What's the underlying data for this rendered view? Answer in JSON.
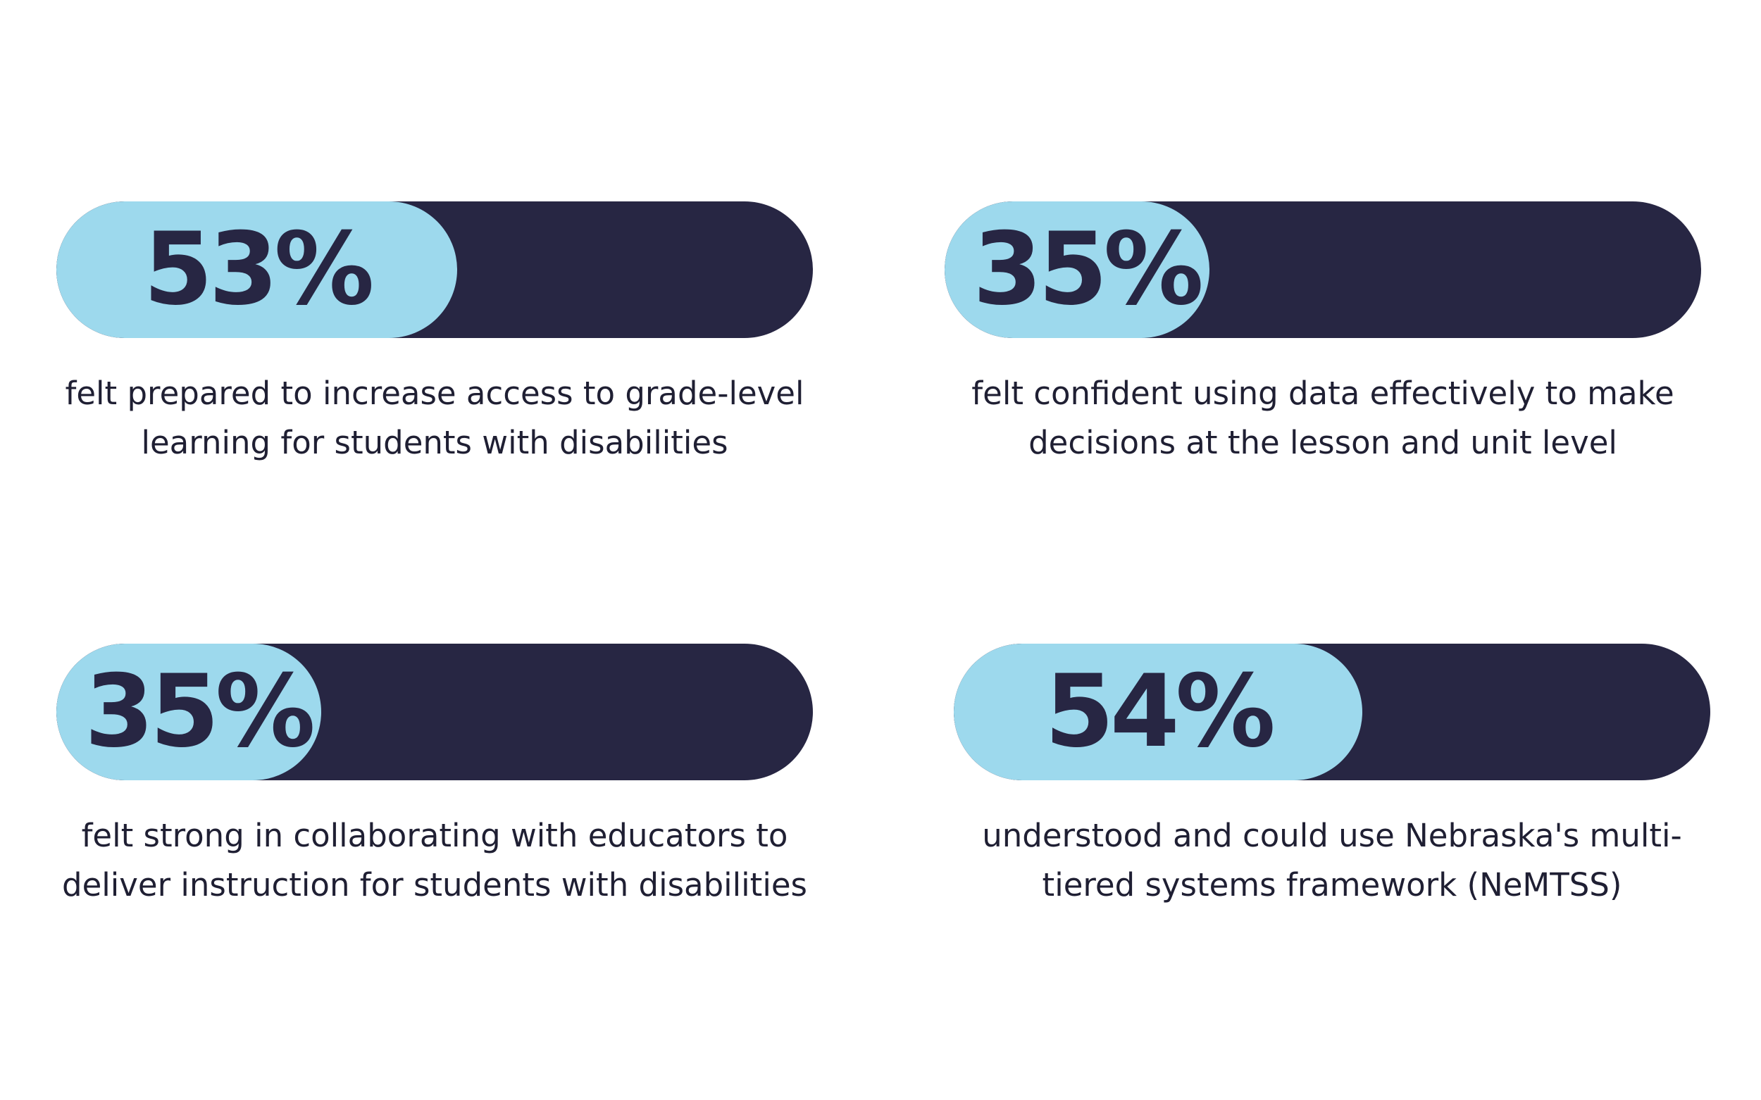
{
  "colors": {
    "track": "#272643",
    "fill": "#9dd9ed",
    "value_text": "#272643",
    "caption_text": "#1f1f33"
  },
  "chart_data": [
    {
      "type": "bar",
      "orientation": "horizontal",
      "values": [
        53
      ],
      "value_label": "53%",
      "caption": "felt prepared to increase access to grade-level learning for students with disabilities",
      "xlim": [
        0,
        100
      ]
    },
    {
      "type": "bar",
      "orientation": "horizontal",
      "values": [
        35
      ],
      "value_label": "35%",
      "caption": "felt confident using data effectively to make decisions at the lesson and unit level",
      "xlim": [
        0,
        100
      ]
    },
    {
      "type": "bar",
      "orientation": "horizontal",
      "values": [
        35
      ],
      "value_label": "35%",
      "caption": "felt strong in collaborating with educators to deliver instruction for students with disabilities",
      "xlim": [
        0,
        100
      ]
    },
    {
      "type": "bar",
      "orientation": "horizontal",
      "values": [
        54
      ],
      "value_label": "54%",
      "caption": "understood and could use Nebraska's multi-tiered systems framework (NeMTSS)",
      "xlim": [
        0,
        100
      ]
    }
  ]
}
